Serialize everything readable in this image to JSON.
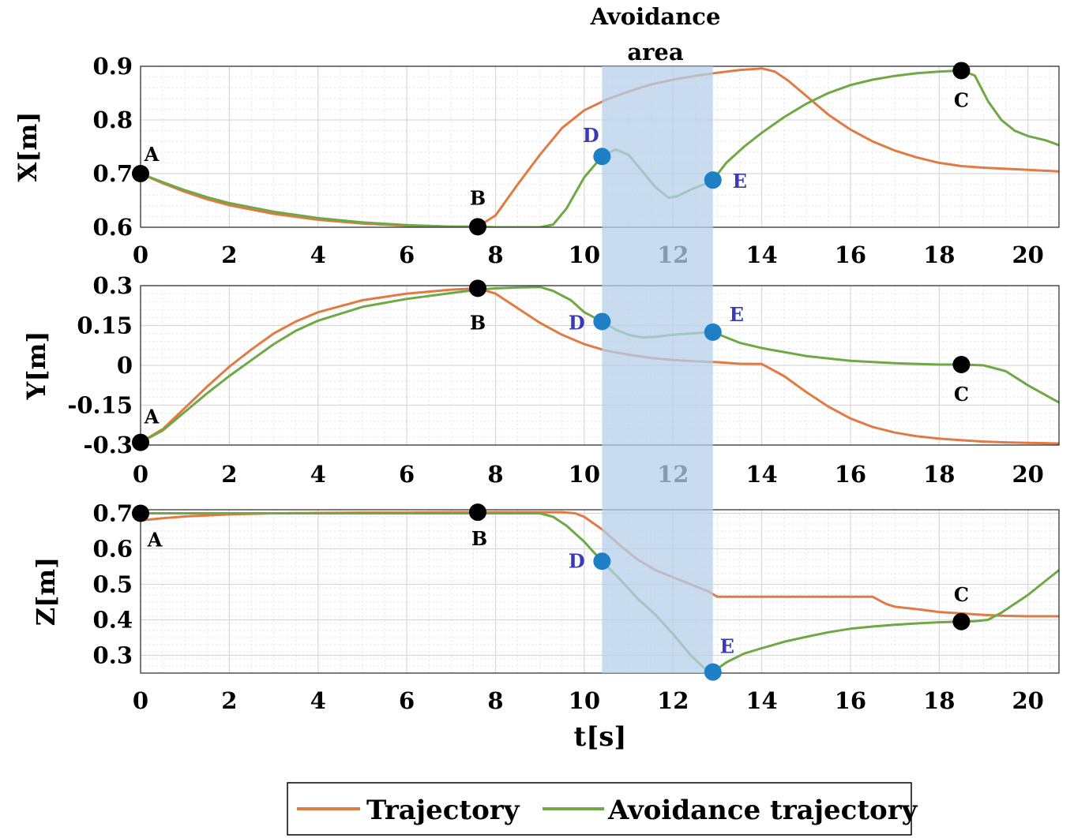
{
  "colors": {
    "trajectory": "#e07b45",
    "avoidance": "#6fa844",
    "band": "#b5cfe9",
    "point_main": "#000000",
    "point_avoid": "#1f7fc4",
    "label_avoid": "#3a3ab8",
    "grid": "#d9d9d9"
  },
  "chart_data": {
    "type": "line",
    "shared_x": {
      "label": "t[s]",
      "range": [
        0,
        20.7
      ],
      "ticks": [
        0,
        2,
        4,
        6,
        8,
        10,
        12,
        14,
        16,
        18,
        20
      ],
      "tick_labels": [
        "0",
        "2",
        "4",
        "6",
        "8",
        "10",
        "12",
        "14",
        "16",
        "18",
        "20"
      ]
    },
    "avoidance_area": {
      "label_line1": "Avoidance",
      "label_line2": "area",
      "t_start": 10.4,
      "t_end": 12.9
    },
    "legend": {
      "entries": [
        "Trajectory",
        "Avoidance trajectory"
      ],
      "placement": "bottom-center"
    },
    "grid": true,
    "subplots": [
      {
        "id": "x",
        "ylabel": "X[m]",
        "ylim": [
          0.6,
          0.9
        ],
        "yticks": [
          0.6,
          0.7,
          0.8,
          0.9
        ],
        "ytick_labels": [
          "0.6",
          "0.7",
          "0.8",
          "0.9"
        ],
        "series": [
          {
            "name": "Trajectory",
            "color_key": "trajectory",
            "x": [
              0,
              0.5,
              1,
              1.5,
              2,
              3,
              4,
              5,
              6,
              7,
              7.6,
              8,
              8.5,
              9,
              9.5,
              10,
              10.5,
              11,
              11.5,
              12,
              12.5,
              13,
              13.5,
              14,
              14.3,
              14.6,
              15,
              15.5,
              16,
              16.5,
              17,
              17.5,
              18,
              18.5,
              19,
              19.5,
              20,
              20.7
            ],
            "y": [
              0.7,
              0.682,
              0.666,
              0.652,
              0.641,
              0.625,
              0.614,
              0.607,
              0.603,
              0.601,
              0.601,
              0.622,
              0.68,
              0.735,
              0.785,
              0.818,
              0.838,
              0.853,
              0.866,
              0.875,
              0.882,
              0.888,
              0.893,
              0.896,
              0.89,
              0.873,
              0.845,
              0.81,
              0.782,
              0.76,
              0.743,
              0.73,
              0.72,
              0.714,
              0.711,
              0.709,
              0.707,
              0.704
            ]
          },
          {
            "name": "Avoidance trajectory",
            "color_key": "avoidance",
            "x": [
              0,
              0.5,
              1,
              1.5,
              2,
              3,
              4,
              5,
              6,
              7,
              7.6,
              8,
              8.5,
              9,
              9.3,
              9.6,
              10,
              10.4,
              10.7,
              11,
              11.3,
              11.6,
              11.9,
              12.1,
              12.4,
              12.7,
              12.9,
              13.2,
              13.6,
              14,
              14.5,
              15,
              15.5,
              16,
              16.5,
              17,
              17.5,
              18,
              18.5,
              18.8,
              19.1,
              19.4,
              19.7,
              20,
              20.4,
              20.7
            ],
            "y": [
              0.7,
              0.684,
              0.669,
              0.656,
              0.645,
              0.629,
              0.617,
              0.609,
              0.604,
              0.601,
              0.601,
              0.6,
              0.6,
              0.6,
              0.605,
              0.635,
              0.693,
              0.732,
              0.745,
              0.735,
              0.705,
              0.675,
              0.655,
              0.658,
              0.67,
              0.68,
              0.688,
              0.72,
              0.75,
              0.776,
              0.805,
              0.83,
              0.85,
              0.865,
              0.875,
              0.882,
              0.887,
              0.89,
              0.892,
              0.883,
              0.835,
              0.8,
              0.78,
              0.77,
              0.762,
              0.753
            ]
          }
        ],
        "points": [
          {
            "label": "A",
            "x": 0,
            "y": 0.7,
            "kind": "main"
          },
          {
            "label": "B",
            "x": 7.6,
            "y": 0.601,
            "kind": "main"
          },
          {
            "label": "D",
            "x": 10.4,
            "y": 0.732,
            "kind": "avoid"
          },
          {
            "label": "E",
            "x": 12.9,
            "y": 0.688,
            "kind": "avoid"
          },
          {
            "label": "C",
            "x": 18.5,
            "y": 0.892,
            "kind": "main"
          }
        ]
      },
      {
        "id": "y",
        "ylabel": "Y[m]",
        "ylim": [
          -0.3,
          0.3
        ],
        "yticks": [
          -0.3,
          -0.15,
          0,
          0.15,
          0.3
        ],
        "ytick_labels": [
          "-0.3",
          "-0.15",
          "0",
          "0.15",
          "0.3"
        ],
        "series": [
          {
            "name": "Trajectory",
            "color_key": "trajectory",
            "x": [
              0,
              0.5,
              1,
              1.5,
              2,
              2.5,
              3,
              3.5,
              4,
              5,
              6,
              7,
              7.6,
              8,
              8.5,
              9,
              9.5,
              10,
              10.5,
              11,
              11.5,
              12,
              12.5,
              13,
              13.5,
              14,
              14.5,
              15,
              15.5,
              16,
              16.5,
              17,
              17.5,
              18,
              18.5,
              19,
              19.5,
              20,
              20.7
            ],
            "y": [
              -0.29,
              -0.24,
              -0.16,
              -0.08,
              -0.005,
              0.06,
              0.12,
              0.165,
              0.2,
              0.245,
              0.27,
              0.285,
              0.29,
              0.27,
              0.215,
              0.16,
              0.115,
              0.08,
              0.055,
              0.04,
              0.028,
              0.02,
              0.015,
              0.012,
              0.006,
              0.005,
              -0.04,
              -0.1,
              -0.155,
              -0.2,
              -0.232,
              -0.253,
              -0.267,
              -0.276,
              -0.282,
              -0.287,
              -0.29,
              -0.292,
              -0.294
            ]
          },
          {
            "name": "Avoidance trajectory",
            "color_key": "avoidance",
            "x": [
              0,
              0.5,
              1,
              1.5,
              2,
              2.5,
              3,
              3.5,
              4,
              5,
              6,
              7,
              7.6,
              8,
              8.5,
              9,
              9.3,
              9.7,
              10,
              10.4,
              10.7,
              11,
              11.3,
              11.6,
              12,
              12.4,
              12.9,
              13.5,
              14,
              15,
              16,
              17,
              18,
              18.5,
              19,
              19.5,
              20,
              20.7
            ],
            "y": [
              -0.29,
              -0.245,
              -0.175,
              -0.105,
              -0.04,
              0.02,
              0.08,
              0.13,
              0.168,
              0.22,
              0.25,
              0.272,
              0.285,
              0.29,
              0.293,
              0.295,
              0.28,
              0.245,
              0.2,
              0.165,
              0.135,
              0.115,
              0.105,
              0.107,
              0.115,
              0.12,
              0.125,
              0.085,
              0.065,
              0.035,
              0.017,
              0.008,
              0.003,
              0.003,
              0.0,
              -0.022,
              -0.075,
              -0.14
            ]
          }
        ],
        "points": [
          {
            "label": "A",
            "x": 0,
            "y": -0.29,
            "kind": "main"
          },
          {
            "label": "B",
            "x": 7.6,
            "y": 0.29,
            "kind": "main"
          },
          {
            "label": "D",
            "x": 10.4,
            "y": 0.165,
            "kind": "avoid"
          },
          {
            "label": "E",
            "x": 12.9,
            "y": 0.125,
            "kind": "avoid"
          },
          {
            "label": "C",
            "x": 18.5,
            "y": 0.003,
            "kind": "main"
          }
        ]
      },
      {
        "id": "z",
        "ylabel": "Z[m]",
        "ylim": [
          0.25,
          0.71
        ],
        "yticks": [
          0.3,
          0.4,
          0.5,
          0.6,
          0.7
        ],
        "ytick_labels": [
          "0.3",
          "0.4",
          "0.5",
          "0.6",
          "0.7"
        ],
        "series": [
          {
            "name": "Trajectory",
            "color_key": "trajectory",
            "x": [
              0,
              0.5,
              1,
              2,
              3,
              4,
              5,
              6,
              7,
              7.6,
              8,
              9,
              9.5,
              9.8,
              10,
              10.4,
              10.8,
              11.2,
              11.6,
              12,
              12.5,
              12.8,
              13,
              13.5,
              14,
              15,
              16,
              16.5,
              16.8,
              17,
              17.5,
              18,
              18.5,
              19,
              19.5,
              20,
              20.7
            ],
            "y": [
              0.68,
              0.686,
              0.691,
              0.697,
              0.7,
              0.701,
              0.702,
              0.702,
              0.703,
              0.703,
              0.703,
              0.703,
              0.703,
              0.7,
              0.69,
              0.655,
              0.61,
              0.57,
              0.54,
              0.52,
              0.495,
              0.48,
              0.465,
              0.465,
              0.465,
              0.465,
              0.465,
              0.465,
              0.445,
              0.437,
              0.43,
              0.422,
              0.418,
              0.414,
              0.411,
              0.41,
              0.41
            ]
          },
          {
            "name": "Avoidance trajectory",
            "color_key": "avoidance",
            "x": [
              0,
              1,
              2,
              3,
              4,
              5,
              6,
              7,
              7.6,
              8,
              8.5,
              9,
              9.3,
              9.6,
              10,
              10.4,
              10.8,
              11.2,
              11.6,
              12,
              12.4,
              12.7,
              12.9,
              13.2,
              13.6,
              14,
              14.5,
              15,
              15.5,
              16,
              16.5,
              17,
              17.5,
              18,
              18.5,
              18.8,
              19.1,
              19.4,
              19.7,
              20,
              20.4,
              20.7
            ],
            "y": [
              0.7,
              0.7,
              0.7,
              0.7,
              0.7,
              0.7,
              0.7,
              0.7,
              0.7,
              0.7,
              0.7,
              0.7,
              0.69,
              0.665,
              0.62,
              0.565,
              0.515,
              0.46,
              0.415,
              0.36,
              0.3,
              0.265,
              0.253,
              0.28,
              0.305,
              0.32,
              0.338,
              0.352,
              0.365,
              0.375,
              0.381,
              0.386,
              0.39,
              0.393,
              0.395,
              0.396,
              0.4,
              0.42,
              0.445,
              0.47,
              0.51,
              0.54
            ]
          }
        ],
        "points": [
          {
            "label": "A",
            "x": 0,
            "y": 0.7,
            "kind": "main"
          },
          {
            "label": "B",
            "x": 7.6,
            "y": 0.703,
            "kind": "main"
          },
          {
            "label": "D",
            "x": 10.4,
            "y": 0.565,
            "kind": "avoid"
          },
          {
            "label": "E",
            "x": 12.9,
            "y": 0.253,
            "kind": "avoid"
          },
          {
            "label": "C",
            "x": 18.5,
            "y": 0.395,
            "kind": "main"
          }
        ]
      }
    ]
  }
}
